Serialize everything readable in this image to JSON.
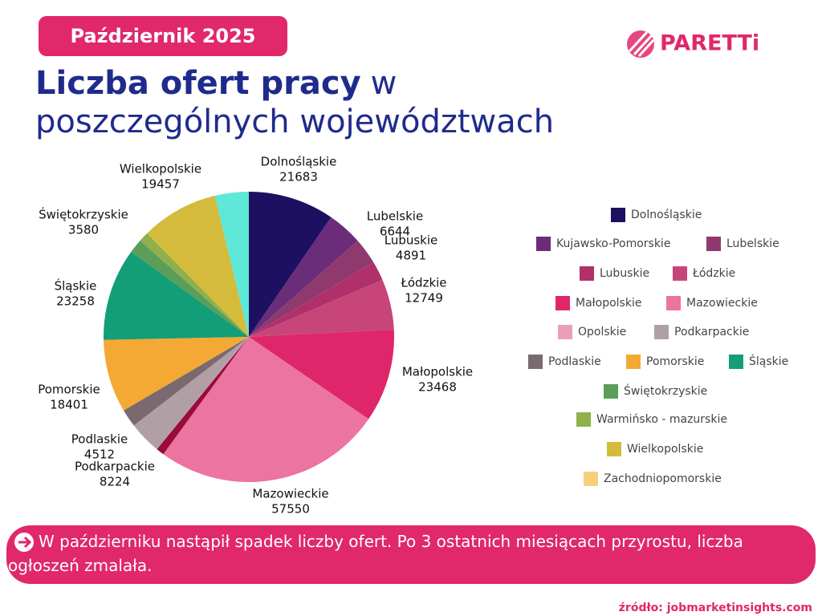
{
  "header": {
    "period": "Październik 2025",
    "logo": "PARETTi",
    "title_bold": "Liczba ofert pracy",
    "title_rest_1": "w",
    "title_rest_2": "poszczególnych województwach"
  },
  "chart_data": {
    "type": "pie",
    "categories": [
      "Dolnośląskie",
      "Kujawsko-Pomorskie",
      "Lubelskie",
      "Lubuskie",
      "Łódzkie",
      "Małopolskie",
      "Mazowieckie",
      "Opolskie",
      "Podkarpackie",
      "Podlaskie",
      "Pomorskie",
      "Śląskie",
      "Świętokrzyskie",
      "Warmińsko - mazurskie",
      "Wielkopolskie",
      "Zachodniopomorskie"
    ],
    "values": [
      21683,
      8800,
      6644,
      4891,
      12749,
      23468,
      57550,
      2000,
      8224,
      4512,
      18401,
      23258,
      3580,
      2500,
      19457,
      8500
    ],
    "colors": [
      "#1e1060",
      "#6b2c7a",
      "#8e3a6e",
      "#b0306a",
      "#c8457a",
      "#e0266a",
      "#ec74a0",
      "#9a0a3a",
      "#b0a0a6",
      "#7a6a70",
      "#f4a935",
      "#139e78",
      "#5a9e5a",
      "#8fb04a",
      "#d4bb3c",
      "#5de8d8"
    ],
    "legend_colors": [
      "#1e1060",
      "#6b2c7a",
      "#8e3a6e",
      "#b0306a",
      "#c8457a",
      "#e0266a",
      "#ec74a0",
      "#e8a0b8",
      "#b0a0a6",
      "#7a6a70",
      "#f4a935",
      "#139e78",
      "#5a9e5a",
      "#8fb04a",
      "#d4bb3c",
      "#f7cf7a"
    ]
  },
  "footer": {
    "note": "W październiku nastąpił spadek liczby ofert. Po 3 ostatnich miesiącach przyrostu, liczba ogłoszeń zmalała.",
    "source": "źródło: jobmarketinsights.com"
  }
}
